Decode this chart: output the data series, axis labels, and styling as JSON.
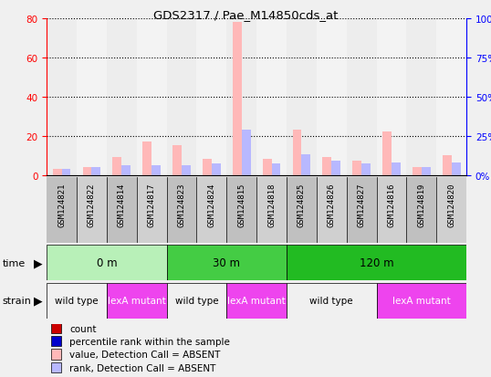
{
  "title": "GDS2317 / Pae_M14850cds_at",
  "samples": [
    "GSM124821",
    "GSM124822",
    "GSM124814",
    "GSM124817",
    "GSM124823",
    "GSM124824",
    "GSM124815",
    "GSM124818",
    "GSM124825",
    "GSM124826",
    "GSM124827",
    "GSM124816",
    "GSM124819",
    "GSM124820"
  ],
  "absent_value": [
    3,
    4,
    9,
    17,
    15,
    8,
    78,
    8,
    23,
    9,
    7,
    22,
    4,
    10
  ],
  "absent_rank": [
    4,
    5,
    6,
    6,
    6,
    7,
    29,
    7,
    13,
    9,
    7,
    8,
    5,
    8
  ],
  "ylim_left": [
    0,
    80
  ],
  "ylim_right": [
    0,
    100
  ],
  "yticks_left": [
    0,
    20,
    40,
    60,
    80
  ],
  "yticks_right": [
    0,
    25,
    50,
    75,
    100
  ],
  "time_groups": [
    {
      "label": "0 m",
      "start": 0,
      "end": 4,
      "color": "#b8f0b8"
    },
    {
      "label": "30 m",
      "start": 4,
      "end": 8,
      "color": "#44cc44"
    },
    {
      "label": "120 m",
      "start": 8,
      "end": 14,
      "color": "#22bb22"
    }
  ],
  "strain_groups": [
    {
      "label": "wild type",
      "start": 0,
      "end": 2,
      "color": "#f0f0f0"
    },
    {
      "label": "lexA mutant",
      "start": 2,
      "end": 4,
      "color": "#ee44ee"
    },
    {
      "label": "wild type",
      "start": 4,
      "end": 6,
      "color": "#f0f0f0"
    },
    {
      "label": "lexA mutant",
      "start": 6,
      "end": 8,
      "color": "#ee44ee"
    },
    {
      "label": "wild type",
      "start": 8,
      "end": 11,
      "color": "#f0f0f0"
    },
    {
      "label": "lexA mutant",
      "start": 11,
      "end": 14,
      "color": "#ee44ee"
    }
  ],
  "bar_width": 0.3,
  "color_absent_val": "#ffb8b8",
  "color_absent_rank": "#b8b8ff",
  "color_count": "#cc0000",
  "color_rank": "#0000cc",
  "plot_bg": "#ffffff",
  "label_bg": "#c8c8c8",
  "legend_items": [
    {
      "label": "count",
      "color": "#cc0000"
    },
    {
      "label": "percentile rank within the sample",
      "color": "#0000cc"
    },
    {
      "label": "value, Detection Call = ABSENT",
      "color": "#ffb8b8"
    },
    {
      "label": "rank, Detection Call = ABSENT",
      "color": "#b8b8ff"
    }
  ]
}
